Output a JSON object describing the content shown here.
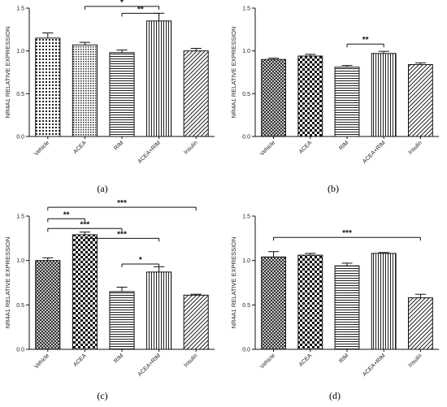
{
  "chart_data": [
    {
      "type": "bar",
      "panel": "(a)",
      "ylabel": "NR4A1 RELATIVE EXPRESSION",
      "ylim": [
        0,
        1.5
      ],
      "yticks": [
        "0.0",
        "0.5",
        "1.0",
        "1.5"
      ],
      "categories": [
        "Vehicle",
        "ACEA",
        "RIM",
        "ACEA+RIM",
        "Insulin"
      ],
      "values": [
        1.15,
        1.07,
        0.98,
        1.35,
        1.0
      ],
      "errors": [
        0.06,
        0.03,
        0.03,
        0.09,
        0.03
      ],
      "patterns": [
        "dots",
        "dots-dense",
        "hlines",
        "vlines",
        "diag"
      ],
      "comparisons": [
        {
          "from": 1,
          "to": 3,
          "label": "*",
          "y": 1.52
        },
        {
          "from": 2,
          "to": 3,
          "label": "**",
          "y": 1.44
        }
      ]
    },
    {
      "type": "bar",
      "panel": "(b)",
      "ylabel": "NR4A1 RELATIVE EXPRESSION",
      "ylim": [
        0,
        1.5
      ],
      "yticks": [
        "0.0",
        "0.5",
        "1.0",
        "1.5"
      ],
      "categories": [
        "Vehicle",
        "ACEA",
        "RIM",
        "ACEA+RIM",
        "Insulin"
      ],
      "values": [
        0.9,
        0.94,
        0.81,
        0.97,
        0.84
      ],
      "errors": [
        0.015,
        0.02,
        0.02,
        0.025,
        0.02
      ],
      "patterns": [
        "crosshatch",
        "checker",
        "hlines",
        "vlines",
        "diag"
      ],
      "comparisons": [
        {
          "from": 2,
          "to": 3,
          "label": "**",
          "y": 1.08
        }
      ]
    },
    {
      "type": "bar",
      "panel": "(c)",
      "ylabel": "NR4A1 RELATIVE EXPRESSION",
      "ylim": [
        0,
        1.5
      ],
      "yticks": [
        "0.0",
        "0.5",
        "1.0",
        "1.5"
      ],
      "categories": [
        "Vehicle",
        "ACEA",
        "RIM",
        "ACEA+RIM",
        "Insulin"
      ],
      "values": [
        1.0,
        1.29,
        0.65,
        0.87,
        0.61
      ],
      "errors": [
        0.03,
        0.03,
        0.05,
        0.06,
        0.01
      ],
      "patterns": [
        "crosshatch",
        "checker",
        "hlines",
        "vlines",
        "diag"
      ],
      "comparisons": [
        {
          "from": 0,
          "to": 4,
          "label": "***",
          "y": 1.6
        },
        {
          "from": 0,
          "to": 1,
          "label": "**",
          "y": 1.47
        },
        {
          "from": 0,
          "to": 2,
          "label": "***",
          "y": 1.36
        },
        {
          "from": 1,
          "to": 3,
          "label": "***",
          "y": 1.25
        },
        {
          "from": 2,
          "to": 3,
          "label": "*",
          "y": 0.96
        }
      ]
    },
    {
      "type": "bar",
      "panel": "(d)",
      "ylabel": "NR4A1 RELATIVE EXPRESSION",
      "ylim": [
        0,
        1.5
      ],
      "yticks": [
        "0.0",
        "0.5",
        "1.0",
        "1.5"
      ],
      "categories": [
        "Vehicle",
        "ACEA",
        "RIM",
        "ACEA+RIM",
        "Insulin"
      ],
      "values": [
        1.04,
        1.06,
        0.94,
        1.08,
        0.58
      ],
      "errors": [
        0.06,
        0.02,
        0.03,
        0.01,
        0.04
      ],
      "patterns": [
        "crosshatch",
        "checker",
        "hlines",
        "vlines",
        "diag"
      ],
      "comparisons": [
        {
          "from": 0,
          "to": 4,
          "label": "***",
          "y": 1.26
        }
      ]
    }
  ]
}
